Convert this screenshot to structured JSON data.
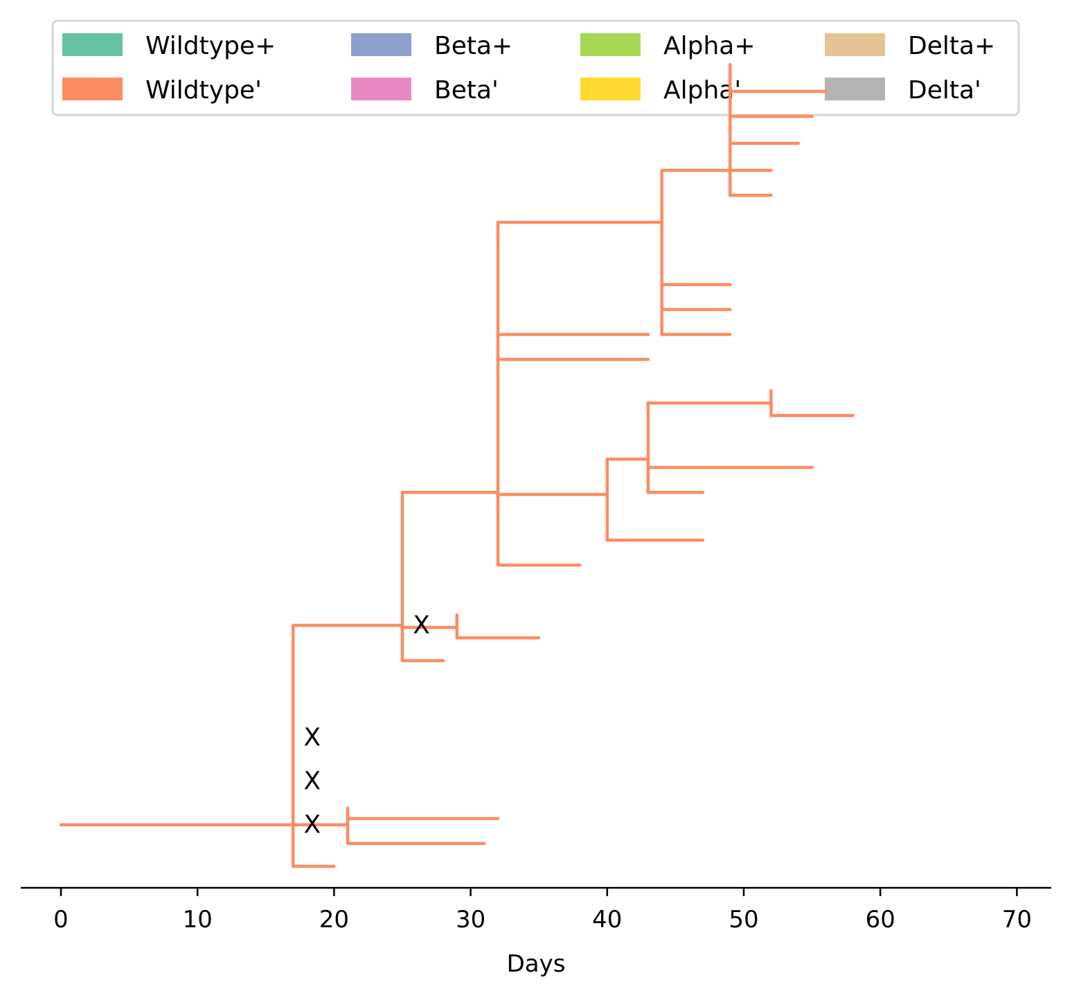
{
  "chart_data": {
    "type": "line",
    "subtype": "transmission-tree",
    "title": "",
    "xlabel": "Days",
    "ylabel": "",
    "xlim": [
      -3,
      72.5
    ],
    "xticks": [
      0,
      10,
      20,
      30,
      40,
      50,
      60,
      70
    ],
    "grid": false,
    "legend": {
      "placement": "top",
      "columns": 4,
      "entries": [
        {
          "label": "Wildtype+",
          "color": "#66c2a5"
        },
        {
          "label": "Wildtype'",
          "color": "#fc8d62"
        },
        {
          "label": "Beta+",
          "color": "#8da0cb"
        },
        {
          "label": "Beta'",
          "color": "#e78ac3"
        },
        {
          "label": "Alpha+",
          "color": "#a6d854"
        },
        {
          "label": "Alpha'",
          "color": "#ffd92f"
        },
        {
          "label": "Delta+",
          "color": "#e5c494"
        },
        {
          "label": "Delta'",
          "color": "#b3b3b3"
        }
      ]
    },
    "series": [
      {
        "variant": "Wildtype'",
        "color": "#fc8d62",
        "branches": [
          {
            "x": [
              0,
              21
            ],
            "y": 8.5
          },
          {
            "x": [
              17,
              25
            ],
            "y": 13.3
          },
          {
            "x": [
              17,
              20
            ],
            "y": 7.5
          },
          {
            "x": [
              21,
              32
            ],
            "y": 8.65
          },
          {
            "x": [
              21,
              31
            ],
            "y": 8.05
          },
          {
            "x": [
              25,
              32
            ],
            "y": 16.5
          },
          {
            "x": [
              25,
              29
            ],
            "y": 13.25
          },
          {
            "x": [
              25,
              28
            ],
            "y": 12.45
          },
          {
            "x": [
              29,
              35
            ],
            "y": 13.0
          },
          {
            "x": [
              32,
              44
            ],
            "y": 23.0
          },
          {
            "x": [
              32,
              43
            ],
            "y": 20.3
          },
          {
            "x": [
              32,
              43
            ],
            "y": 19.7
          },
          {
            "x": [
              32,
              40
            ],
            "y": 16.45
          },
          {
            "x": [
              32,
              38
            ],
            "y": 14.75
          },
          {
            "x": [
              40,
              43
            ],
            "y": 17.3
          },
          {
            "x": [
              40,
              47
            ],
            "y": 15.35
          },
          {
            "x": [
              43,
              52
            ],
            "y": 18.65
          },
          {
            "x": [
              43,
              55
            ],
            "y": 17.1
          },
          {
            "x": [
              43,
              47
            ],
            "y": 16.5
          },
          {
            "x": [
              52,
              58
            ],
            "y": 18.35
          },
          {
            "x": [
              44,
              49
            ],
            "y": 24.25
          },
          {
            "x": [
              44,
              49
            ],
            "y": 21.5
          },
          {
            "x": [
              44,
              49
            ],
            "y": 20.9
          },
          {
            "x": [
              44,
              49
            ],
            "y": 20.3
          },
          {
            "x": [
              49,
              56
            ],
            "y": 26.15
          },
          {
            "x": [
              49,
              55
            ],
            "y": 25.55
          },
          {
            "x": [
              49,
              54
            ],
            "y": 24.9
          },
          {
            "x": [
              49,
              52
            ],
            "y": 24.25
          },
          {
            "x": [
              49,
              52
            ],
            "y": 23.65
          }
        ],
        "connectors": [
          {
            "x": 17,
            "y": [
              7.5,
              13.3
            ]
          },
          {
            "x": 21,
            "y": [
              8.05,
              8.9
            ]
          },
          {
            "x": 25,
            "y": [
              12.45,
              16.5
            ]
          },
          {
            "x": 29,
            "y": [
              13.0,
              13.55
            ]
          },
          {
            "x": 32,
            "y": [
              14.75,
              23.0
            ]
          },
          {
            "x": 40,
            "y": [
              15.35,
              17.3
            ]
          },
          {
            "x": 43,
            "y": [
              16.5,
              18.65
            ]
          },
          {
            "x": 52,
            "y": [
              18.35,
              18.95
            ]
          },
          {
            "x": 44,
            "y": [
              20.3,
              24.25
            ]
          },
          {
            "x": 49,
            "y": [
              23.65,
              26.8
            ]
          }
        ]
      }
    ],
    "annotations": [
      {
        "text": "X",
        "x": 18.4,
        "y": 8.5
      },
      {
        "text": "X",
        "x": 18.4,
        "y": 9.55
      },
      {
        "text": "X",
        "x": 18.4,
        "y": 10.6
      },
      {
        "text": "X",
        "x": 26.4,
        "y": 13.3
      }
    ]
  }
}
